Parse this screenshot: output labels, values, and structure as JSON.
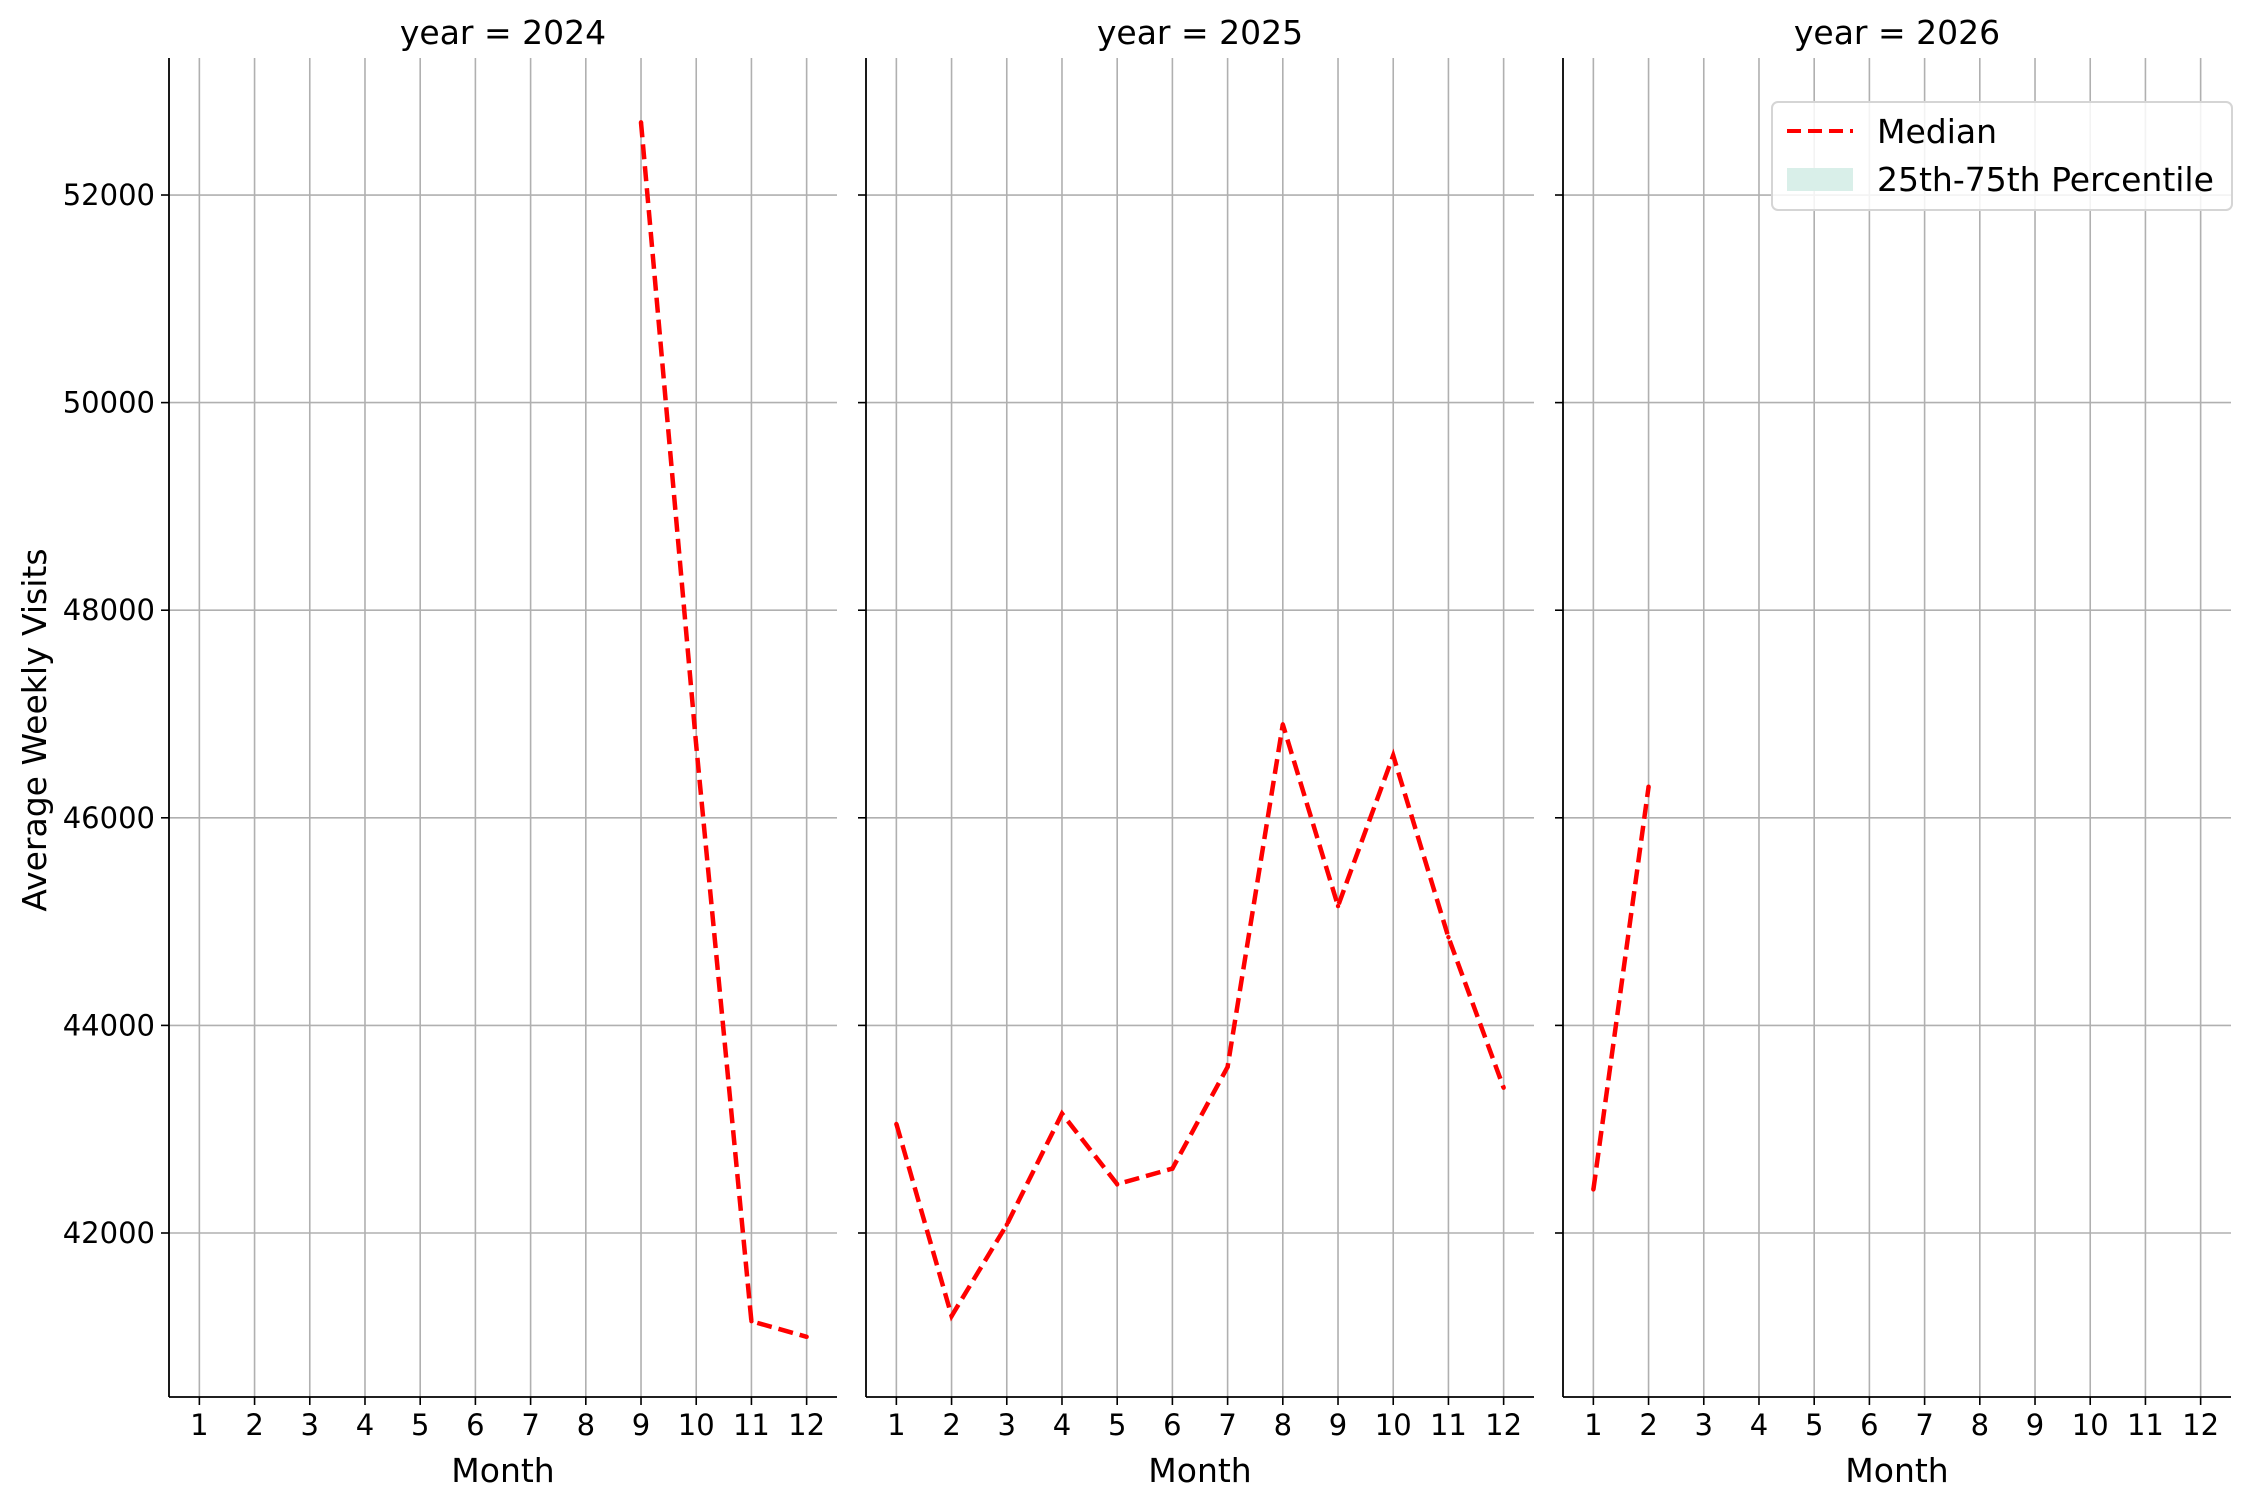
{
  "chart_data": {
    "type": "line",
    "layout": "facet-row",
    "facet_label": "year",
    "ylabel": "Average Weekly Visits",
    "xlabel": "Month",
    "x_ticks": [
      1,
      2,
      3,
      4,
      5,
      6,
      7,
      8,
      9,
      10,
      11,
      12
    ],
    "y_ticks": [
      42000,
      44000,
      46000,
      48000,
      50000,
      52000
    ],
    "ylim": [
      40420,
      53320
    ],
    "xlim": [
      0.45,
      12.55
    ],
    "grid": true,
    "sharey": true,
    "legend": {
      "position": "top-right",
      "entries": [
        {
          "label": "Median",
          "color": "#ff0000",
          "style": "dashed-line"
        },
        {
          "label": "25th-75th Percentile",
          "color": "#d9efe9",
          "style": "patch"
        }
      ]
    },
    "panels": [
      {
        "title": "year = 2024",
        "series": [
          {
            "name": "Median",
            "x": [
              9,
              10,
              11,
              12
            ],
            "y": [
              52700,
              46700,
              41150,
              41000
            ]
          }
        ]
      },
      {
        "title": "year = 2025",
        "series": [
          {
            "name": "Median",
            "x": [
              1,
              2,
              3,
              4,
              5,
              6,
              7,
              8,
              9,
              10,
              11,
              12
            ],
            "y": [
              43050,
              41200,
              42080,
              43150,
              42470,
              42620,
              43600,
              46900,
              45150,
              46600,
              44850,
              43400
            ]
          }
        ]
      },
      {
        "title": "year = 2026",
        "series": [
          {
            "name": "Median",
            "x": [
              1,
              2
            ],
            "y": [
              42420,
              46300
            ]
          }
        ]
      }
    ]
  },
  "colors": {
    "median_line": "#ff0000",
    "percentile_band": "#d9efe9",
    "grid": "#b0b0b0",
    "axis": "#000000"
  }
}
